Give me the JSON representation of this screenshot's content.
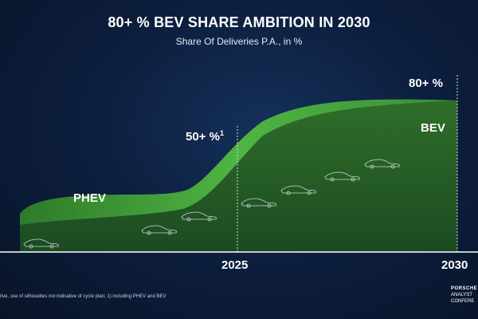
{
  "slide": {
    "title": "80+ % BEV SHARE AMBITION IN 2030",
    "subtitle": "Share Of Deliveries P.A., in %",
    "footnote": "tive, use of silhouettes not indicative of cycle plan; 1) including PHEV and BEV",
    "brand_line1": "PORSCHE",
    "brand_line2": "ANALYST",
    "brand_line3": "CONFERE"
  },
  "chart_data": {
    "type": "area",
    "title": "80+ % BEV SHARE AMBITION IN 2030",
    "subtitle": "Share Of Deliveries P.A., in %",
    "x_ticks": [
      "2025",
      "2030"
    ],
    "series": [
      {
        "name": "BEV",
        "color": "#2e6b2a"
      },
      {
        "name": "PHEV",
        "color": "#47a83c"
      }
    ],
    "annotations": [
      {
        "x": "2025",
        "label": "50+ %",
        "footnote_ref": "1"
      },
      {
        "x": "2030",
        "label": "80+ %"
      }
    ],
    "guide_lines": [
      "2025",
      "2030"
    ],
    "grid": false
  }
}
